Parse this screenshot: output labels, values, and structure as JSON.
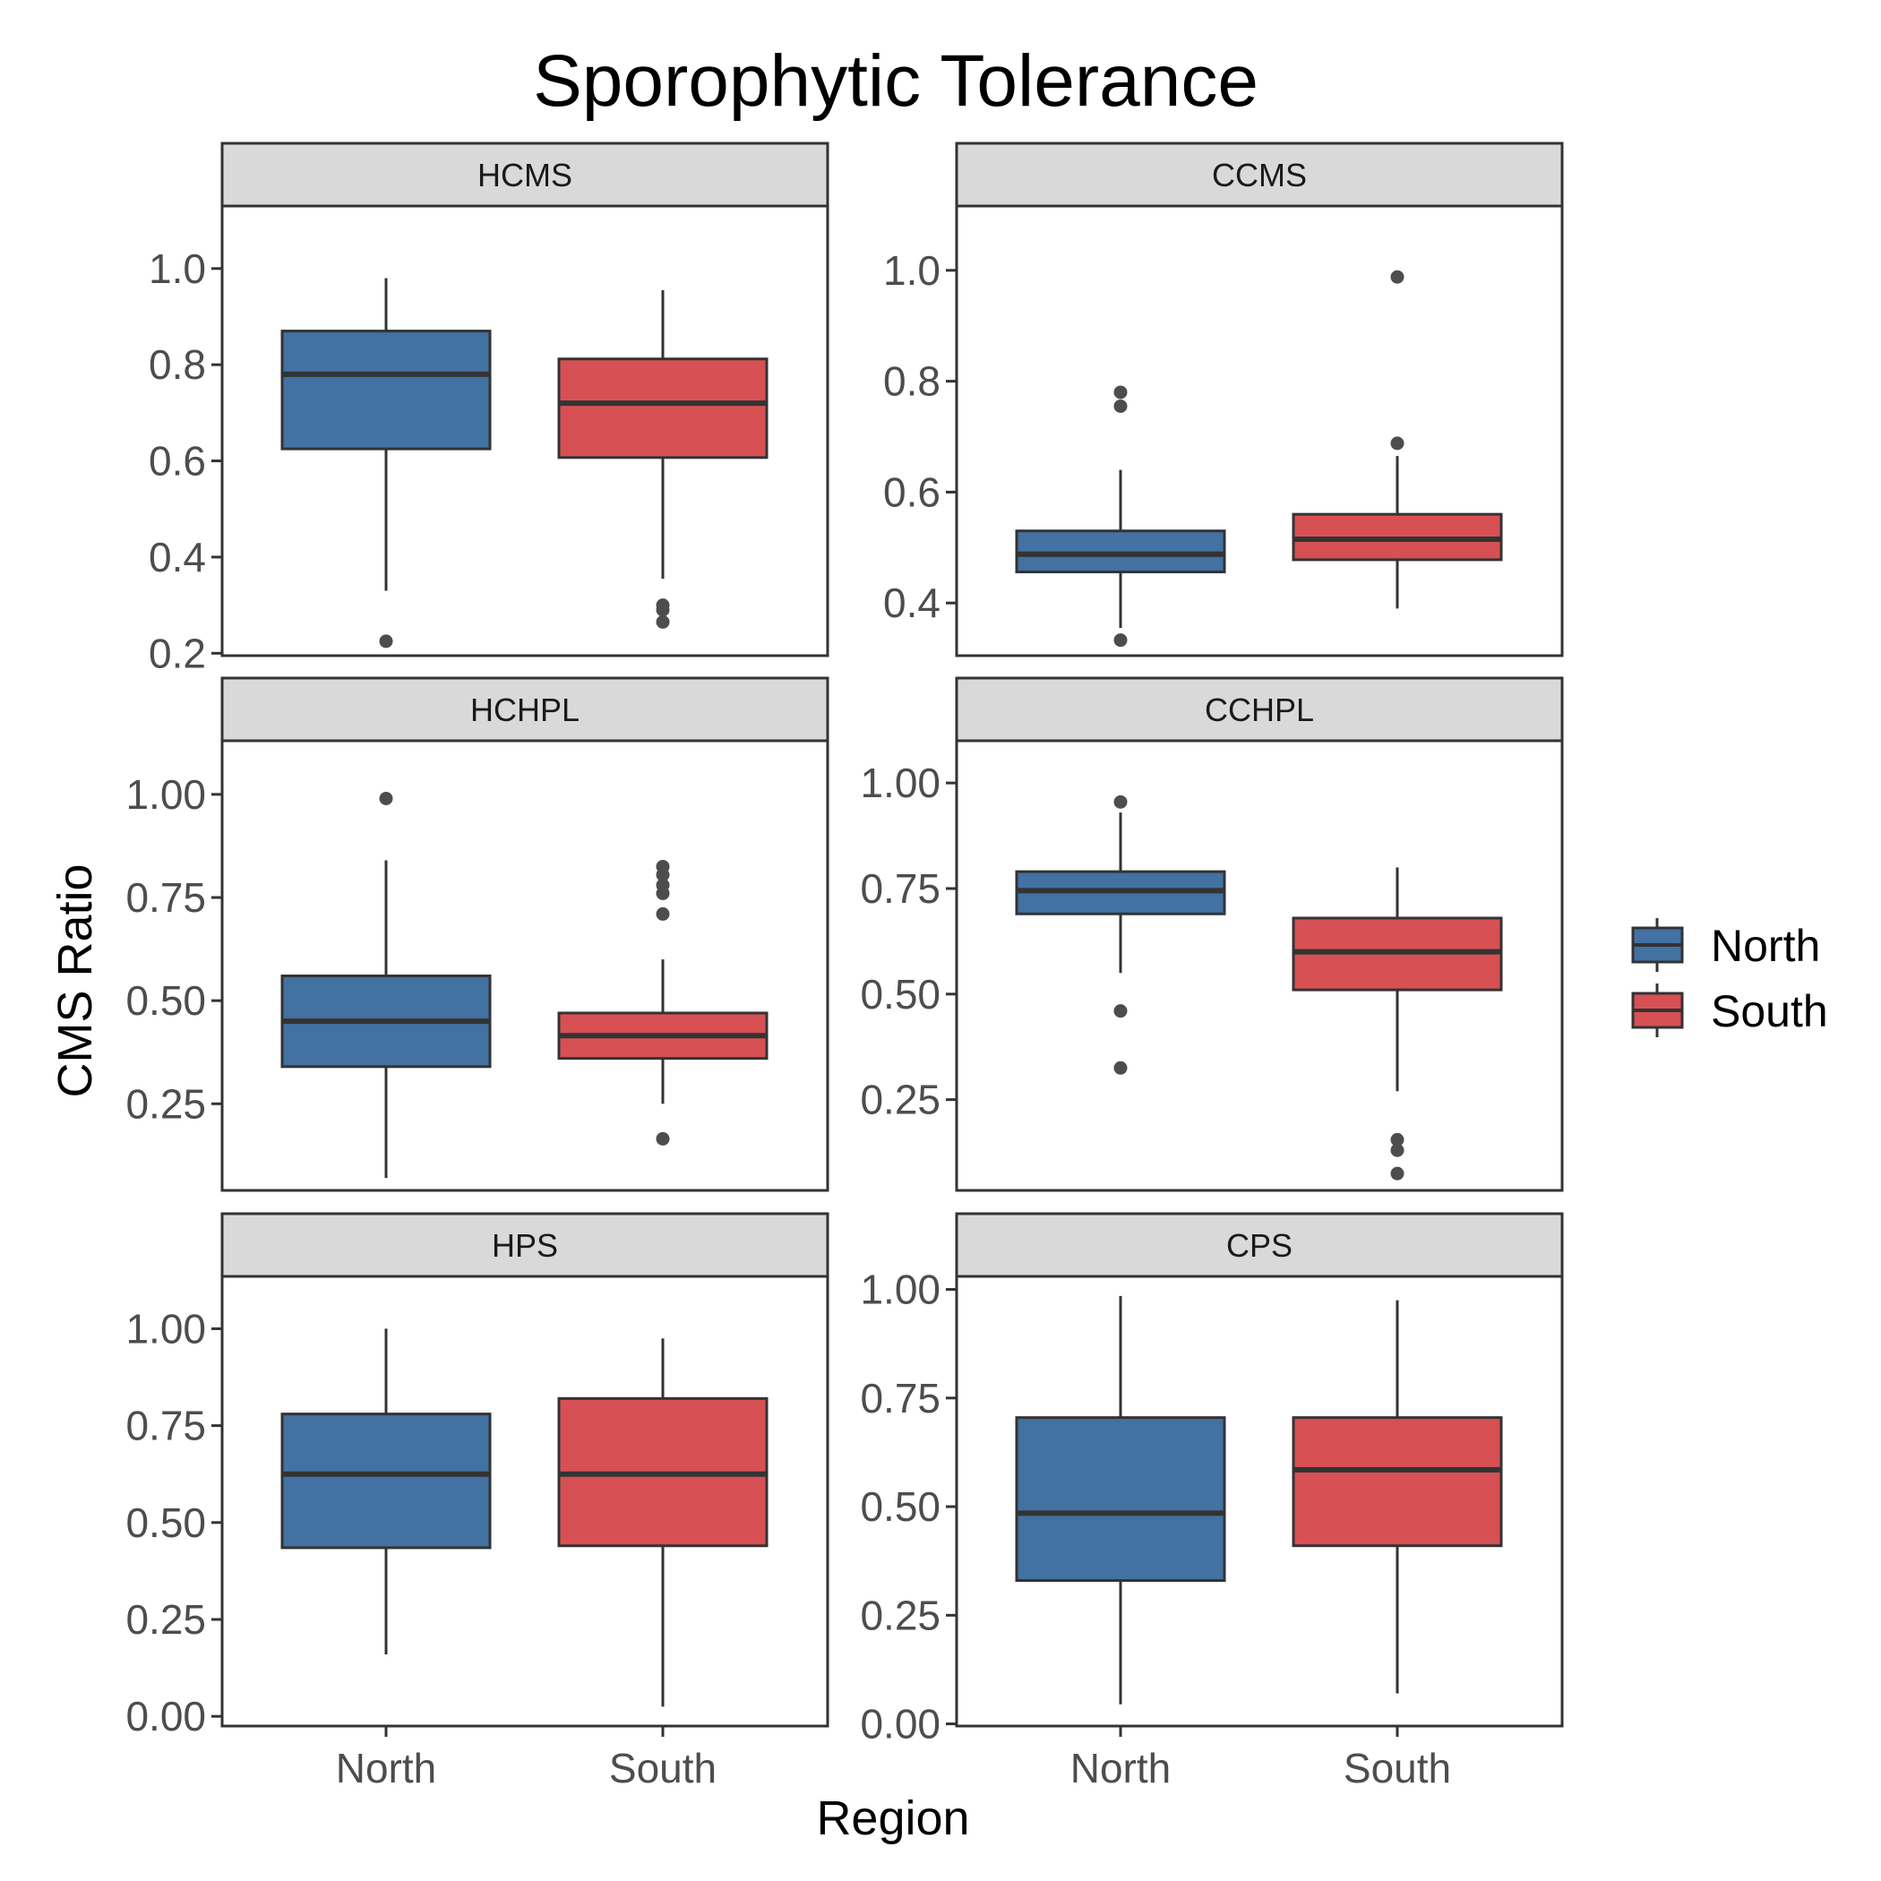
{
  "chart_data": {
    "type": "boxplot",
    "title": "Sporophytic Tolerance",
    "xlabel": "Region",
    "ylabel": "CMS Ratio",
    "categories": [
      "North",
      "South"
    ],
    "colors": {
      "North": "#4271a2",
      "South": "#d75054",
      "outlier": "#4d4d4d",
      "strip": "#d9d9d9"
    },
    "legend": {
      "position": "right",
      "entries": [
        "North",
        "South"
      ]
    },
    "grid": false,
    "panels": [
      {
        "name": "HCMS",
        "ylim": [
          0.195,
          1.13
        ],
        "ticks": [
          0.2,
          0.4,
          0.6,
          0.8,
          1.0
        ],
        "tick_labels": [
          "0.2",
          "0.4",
          "0.6",
          "0.8",
          "1.0"
        ],
        "boxes": [
          {
            "group": "North",
            "lower_whisker": 0.33,
            "q1": 0.625,
            "median": 0.78,
            "q3": 0.87,
            "upper_whisker": 0.98,
            "outliers": [
              0.225
            ]
          },
          {
            "group": "South",
            "lower_whisker": 0.355,
            "q1": 0.607,
            "median": 0.72,
            "q3": 0.812,
            "upper_whisker": 0.955,
            "outliers": [
              0.3,
              0.29,
              0.265
            ]
          }
        ]
      },
      {
        "name": "CCMS",
        "ylim": [
          0.305,
          1.116
        ],
        "ticks": [
          0.4,
          0.6,
          0.8,
          1.0
        ],
        "tick_labels": [
          "0.4",
          "0.6",
          "0.8",
          "1.0"
        ],
        "boxes": [
          {
            "group": "North",
            "lower_whisker": 0.355,
            "q1": 0.456,
            "median": 0.488,
            "q3": 0.53,
            "upper_whisker": 0.64,
            "outliers": [
              0.78,
              0.755,
              0.333
            ]
          },
          {
            "group": "South",
            "lower_whisker": 0.39,
            "q1": 0.478,
            "median": 0.515,
            "q3": 0.56,
            "upper_whisker": 0.665,
            "outliers": [
              0.988,
              0.688
            ]
          }
        ]
      },
      {
        "name": "HCHPL",
        "ylim": [
          0.04,
          1.13
        ],
        "ticks": [
          0.25,
          0.5,
          0.75,
          1.0
        ],
        "tick_labels": [
          "0.25",
          "0.50",
          "0.75",
          "1.00"
        ],
        "boxes": [
          {
            "group": "North",
            "lower_whisker": 0.07,
            "q1": 0.34,
            "median": 0.45,
            "q3": 0.56,
            "upper_whisker": 0.84,
            "outliers": [
              0.99
            ]
          },
          {
            "group": "South",
            "lower_whisker": 0.25,
            "q1": 0.36,
            "median": 0.415,
            "q3": 0.47,
            "upper_whisker": 0.6,
            "outliers": [
              0.825,
              0.805,
              0.78,
              0.76,
              0.71,
              0.165
            ]
          }
        ]
      },
      {
        "name": "CCHPL",
        "ylim": [
          0.035,
          1.1
        ],
        "ticks": [
          0.25,
          0.5,
          0.75,
          1.0
        ],
        "tick_labels": [
          "0.25",
          "0.50",
          "0.75",
          "1.00"
        ],
        "boxes": [
          {
            "group": "North",
            "lower_whisker": 0.55,
            "q1": 0.69,
            "median": 0.745,
            "q3": 0.79,
            "upper_whisker": 0.93,
            "outliers": [
              0.955,
              0.46,
              0.325
            ]
          },
          {
            "group": "South",
            "lower_whisker": 0.27,
            "q1": 0.51,
            "median": 0.6,
            "q3": 0.68,
            "upper_whisker": 0.8,
            "outliers": [
              0.155,
              0.13,
              0.075
            ]
          }
        ]
      },
      {
        "name": "HPS",
        "ylim": [
          -0.025,
          1.135
        ],
        "ticks": [
          0.0,
          0.25,
          0.5,
          0.75,
          1.0
        ],
        "tick_labels": [
          "0.00",
          "0.25",
          "0.50",
          "0.75",
          "1.00"
        ],
        "boxes": [
          {
            "group": "North",
            "lower_whisker": 0.16,
            "q1": 0.435,
            "median": 0.625,
            "q3": 0.78,
            "upper_whisker": 1.0,
            "outliers": []
          },
          {
            "group": "South",
            "lower_whisker": 0.025,
            "q1": 0.44,
            "median": 0.625,
            "q3": 0.82,
            "upper_whisker": 0.975,
            "outliers": []
          }
        ]
      },
      {
        "name": "CPS",
        "ylim": [
          -0.005,
          1.03
        ],
        "ticks": [
          0.0,
          0.25,
          0.5,
          0.75,
          1.0
        ],
        "tick_labels": [
          "0.00",
          "0.25",
          "0.50",
          "0.75",
          "1.00"
        ],
        "boxes": [
          {
            "group": "North",
            "lower_whisker": 0.045,
            "q1": 0.33,
            "median": 0.485,
            "q3": 0.705,
            "upper_whisker": 0.985,
            "outliers": []
          },
          {
            "group": "South",
            "lower_whisker": 0.07,
            "q1": 0.41,
            "median": 0.585,
            "q3": 0.705,
            "upper_whisker": 0.975,
            "outliers": []
          }
        ]
      }
    ]
  }
}
